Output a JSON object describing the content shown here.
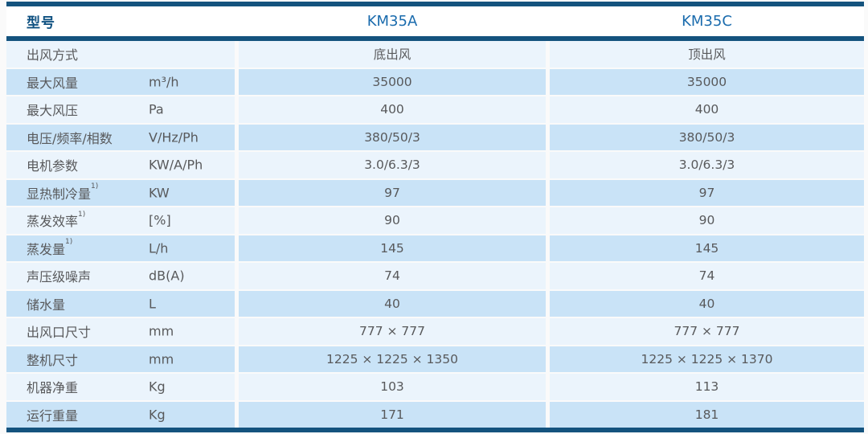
{
  "colors": {
    "border_rule": "#14537E",
    "row_light": "#EBF4FC",
    "row_dark": "#C9E3F7",
    "body_text": "#58595B",
    "header_label_text": "#0F5181",
    "model_text": "#1A6BAD",
    "page_background": "#FAFAFA"
  },
  "table": {
    "header": {
      "col1": "型号",
      "col2": "KM35A",
      "col3": "KM35C"
    },
    "rows": [
      {
        "label": "出风方式",
        "sup": "",
        "unit": "",
        "km35a": "底出风",
        "km35c": "顶出风"
      },
      {
        "label": "最大风量",
        "sup": "",
        "unit": "m³/h",
        "km35a": "35000",
        "km35c": "35000"
      },
      {
        "label": "最大风压",
        "sup": "",
        "unit": "Pa",
        "km35a": "400",
        "km35c": "400"
      },
      {
        "label": "电压/频率/相数",
        "sup": "",
        "unit": "V/Hz/Ph",
        "km35a": "380/50/3",
        "km35c": "380/50/3"
      },
      {
        "label": "电机参数",
        "sup": "",
        "unit": "KW/A/Ph",
        "km35a": "3.0/6.3/3",
        "km35c": "3.0/6.3/3"
      },
      {
        "label": "显热制冷量",
        "sup": "1)",
        "unit": "KW",
        "km35a": "97",
        "km35c": "97"
      },
      {
        "label": "蒸发效率",
        "sup": "1)",
        "unit": "[%]",
        "km35a": "90",
        "km35c": "90"
      },
      {
        "label": "蒸发量",
        "sup": "1)",
        "unit": "L/h",
        "km35a": "145",
        "km35c": "145"
      },
      {
        "label": "声压级噪声",
        "sup": "",
        "unit": "dB(A)",
        "km35a": "74",
        "km35c": "74"
      },
      {
        "label": "储水量",
        "sup": "",
        "unit": "L",
        "km35a": "40",
        "km35c": "40"
      },
      {
        "label": "出风口尺寸",
        "sup": "",
        "unit": "mm",
        "km35a": "777 × 777",
        "km35c": "777 × 777"
      },
      {
        "label": "整机尺寸",
        "sup": "",
        "unit": "mm",
        "km35a": "1225 × 1225 × 1350",
        "km35c": "1225 × 1225 × 1370"
      },
      {
        "label": "机器净重",
        "sup": "",
        "unit": "Kg",
        "km35a": "103",
        "km35c": "113"
      },
      {
        "label": "运行重量",
        "sup": "",
        "unit": "Kg",
        "km35a": "171",
        "km35c": "181"
      }
    ]
  }
}
